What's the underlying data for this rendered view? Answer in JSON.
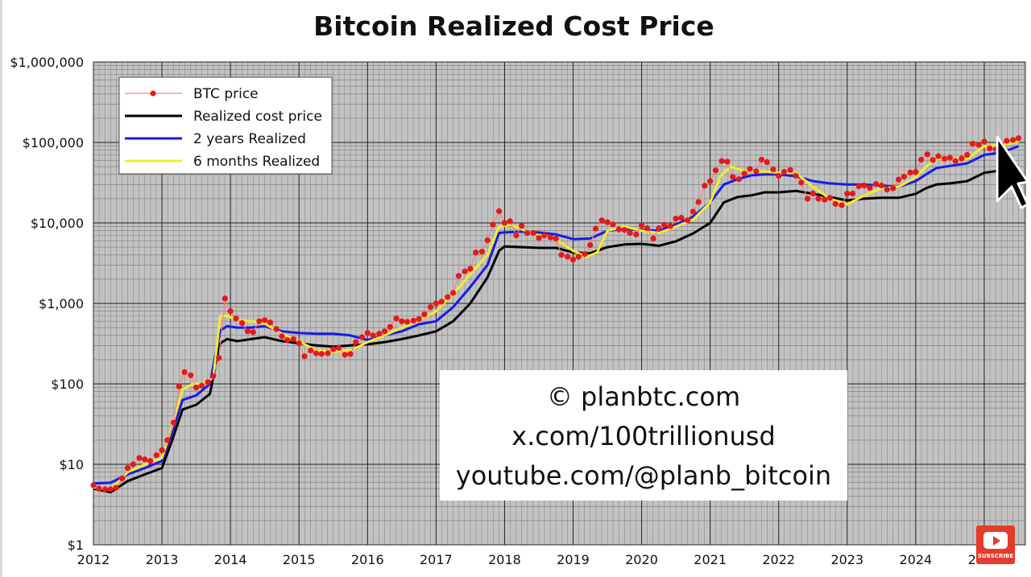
{
  "chart_data": {
    "type": "line",
    "title": "Bitcoin Realized Cost Price",
    "y_scale": "log",
    "ylim": [
      1,
      1000000
    ],
    "xlim": [
      2012.0,
      2025.6
    ],
    "y_ticks": [
      {
        "value": 1000000,
        "label": "$1,000,000"
      },
      {
        "value": 100000,
        "label": "$100,000"
      },
      {
        "value": 10000,
        "label": "$10,000"
      },
      {
        "value": 1000,
        "label": "$1,000"
      },
      {
        "value": 100,
        "label": "$100"
      },
      {
        "value": 10,
        "label": "$10"
      },
      {
        "value": 1,
        "label": "$1"
      }
    ],
    "x_ticks": [
      {
        "value": 2012,
        "label": "2012"
      },
      {
        "value": 2013,
        "label": "2013"
      },
      {
        "value": 2014,
        "label": "2014"
      },
      {
        "value": 2015,
        "label": "2015"
      },
      {
        "value": 2016,
        "label": "2016"
      },
      {
        "value": 2017,
        "label": "2017"
      },
      {
        "value": 2018,
        "label": "2018"
      },
      {
        "value": 2019,
        "label": "2019"
      },
      {
        "value": 2020,
        "label": "2020"
      },
      {
        "value": 2021,
        "label": "2021"
      },
      {
        "value": 2022,
        "label": "2022"
      },
      {
        "value": 2023,
        "label": "2023"
      },
      {
        "value": 2024,
        "label": "2024"
      },
      {
        "value": 2025,
        "label": "2025"
      }
    ],
    "grid": true,
    "legend_position": "top-left",
    "series": [
      {
        "name": "BTC price",
        "color": "#e81818",
        "style": "line+markers",
        "x": [
          2012.0,
          2012.08,
          2012.17,
          2012.25,
          2012.33,
          2012.42,
          2012.5,
          2012.58,
          2012.67,
          2012.75,
          2012.83,
          2012.92,
          2013.0,
          2013.08,
          2013.17,
          2013.25,
          2013.33,
          2013.42,
          2013.5,
          2013.58,
          2013.67,
          2013.75,
          2013.83,
          2013.92,
          2014.0,
          2014.08,
          2014.17,
          2014.25,
          2014.33,
          2014.42,
          2014.5,
          2014.58,
          2014.67,
          2014.75,
          2014.83,
          2014.92,
          2015.0,
          2015.08,
          2015.17,
          2015.25,
          2015.33,
          2015.42,
          2015.5,
          2015.58,
          2015.67,
          2015.75,
          2015.83,
          2015.92,
          2016.0,
          2016.08,
          2016.17,
          2016.25,
          2016.33,
          2016.42,
          2016.5,
          2016.58,
          2016.67,
          2016.75,
          2016.83,
          2016.92,
          2017.0,
          2017.08,
          2017.17,
          2017.25,
          2017.33,
          2017.42,
          2017.5,
          2017.58,
          2017.67,
          2017.75,
          2017.83,
          2017.92,
          2018.0,
          2018.08,
          2018.17,
          2018.25,
          2018.33,
          2018.42,
          2018.5,
          2018.58,
          2018.67,
          2018.75,
          2018.83,
          2018.92,
          2019.0,
          2019.08,
          2019.17,
          2019.25,
          2019.33,
          2019.42,
          2019.5,
          2019.58,
          2019.67,
          2019.75,
          2019.83,
          2019.92,
          2020.0,
          2020.08,
          2020.17,
          2020.25,
          2020.33,
          2020.42,
          2020.5,
          2020.58,
          2020.67,
          2020.75,
          2020.83,
          2020.92,
          2021.0,
          2021.08,
          2021.17,
          2021.25,
          2021.33,
          2021.42,
          2021.5,
          2021.58,
          2021.67,
          2021.75,
          2021.83,
          2021.92,
          2022.0,
          2022.08,
          2022.17,
          2022.25,
          2022.33,
          2022.42,
          2022.5,
          2022.58,
          2022.67,
          2022.75,
          2022.83,
          2022.92,
          2023.0,
          2023.08,
          2023.17,
          2023.25,
          2023.33,
          2023.42,
          2023.5,
          2023.58,
          2023.67,
          2023.75,
          2023.83,
          2023.92,
          2024.0,
          2024.08,
          2024.17,
          2024.25,
          2024.33,
          2024.42,
          2024.5,
          2024.58,
          2024.67,
          2024.75,
          2024.83,
          2024.92,
          2025.0,
          2025.08,
          2025.17,
          2025.25,
          2025.33,
          2025.42,
          2025.5
        ],
        "values": [
          5.5,
          5.0,
          4.9,
          4.9,
          5.1,
          6.7,
          9,
          10,
          12,
          11.5,
          11,
          13,
          15,
          20,
          33,
          93,
          140,
          128,
          90,
          95,
          105,
          125,
          210,
          1150,
          800,
          650,
          570,
          450,
          440,
          600,
          620,
          580,
          480,
          390,
          350,
          360,
          320,
          220,
          260,
          240,
          236,
          240,
          270,
          280,
          230,
          235,
          330,
          380,
          430,
          400,
          420,
          450,
          510,
          650,
          600,
          590,
          610,
          640,
          730,
          900,
          1000,
          1050,
          1200,
          1350,
          2200,
          2500,
          2700,
          4300,
          4400,
          6100,
          9500,
          14000,
          10000,
          10500,
          7000,
          9200,
          7500,
          7500,
          6500,
          7000,
          6600,
          6400,
          4000,
          3800,
          3500,
          3800,
          4100,
          5300,
          8500,
          10800,
          10200,
          9600,
          8300,
          8200,
          7500,
          7200,
          9300,
          8600,
          6400,
          8600,
          9450,
          9130,
          11300,
          11600,
          10800,
          13800,
          18200,
          29000,
          33000,
          45000,
          58800,
          57800,
          37300,
          35000,
          41000,
          47000,
          43800,
          61300,
          57000,
          46200,
          38500,
          43200,
          45500,
          38600,
          31800,
          20000,
          23300,
          20000,
          19400,
          20500,
          17200,
          16600,
          23100,
          23100,
          28500,
          29200,
          27200,
          30500,
          29200,
          26000,
          27000,
          34600,
          37700,
          42300,
          43000,
          61200,
          71300,
          60600,
          67500,
          62700,
          64600,
          58900,
          63300,
          70200,
          96400,
          93400,
          102400,
          84300,
          82500,
          94200,
          104600,
          107100,
          113000
        ]
      },
      {
        "name": "Realized cost price",
        "color": "#000000",
        "style": "line",
        "x": [
          2012.0,
          2012.25,
          2012.5,
          2012.75,
          2013.0,
          2013.15,
          2013.3,
          2013.5,
          2013.7,
          2013.85,
          2013.95,
          2014.1,
          2014.3,
          2014.5,
          2014.75,
          2015.0,
          2015.25,
          2015.5,
          2015.75,
          2016.0,
          2016.25,
          2016.5,
          2016.75,
          2017.0,
          2017.25,
          2017.5,
          2017.75,
          2017.92,
          2018.0,
          2018.25,
          2018.5,
          2018.75,
          2019.0,
          2019.25,
          2019.5,
          2019.75,
          2020.0,
          2020.25,
          2020.5,
          2020.75,
          2021.0,
          2021.2,
          2021.4,
          2021.6,
          2021.8,
          2022.0,
          2022.25,
          2022.5,
          2022.75,
          2023.0,
          2023.25,
          2023.5,
          2023.75,
          2024.0,
          2024.15,
          2024.3,
          2024.5,
          2024.75,
          2025.0,
          2025.25,
          2025.5
        ],
        "values": [
          5,
          4.5,
          6.2,
          7.5,
          9,
          20,
          48,
          55,
          75,
          320,
          360,
          340,
          360,
          380,
          340,
          320,
          300,
          290,
          300,
          310,
          330,
          360,
          400,
          450,
          600,
          1000,
          2100,
          4500,
          5100,
          5000,
          4900,
          4900,
          4300,
          4200,
          5000,
          5400,
          5500,
          5200,
          5900,
          7400,
          10000,
          18000,
          21000,
          22000,
          24000,
          24000,
          25000,
          23000,
          21000,
          19000,
          20000,
          20500,
          20500,
          23000,
          27000,
          30000,
          31000,
          33000,
          42000,
          45000,
          51000
        ]
      },
      {
        "name": "2 years Realized",
        "color": "#1a1ae6",
        "style": "line",
        "x": [
          2012.0,
          2012.25,
          2012.5,
          2012.75,
          2013.0,
          2013.15,
          2013.3,
          2013.5,
          2013.7,
          2013.85,
          2013.95,
          2014.1,
          2014.3,
          2014.5,
          2014.75,
          2015.0,
          2015.25,
          2015.5,
          2015.75,
          2016.0,
          2016.25,
          2016.5,
          2016.75,
          2017.0,
          2017.25,
          2017.5,
          2017.75,
          2017.92,
          2018.0,
          2018.25,
          2018.5,
          2018.75,
          2019.0,
          2019.25,
          2019.5,
          2019.75,
          2020.0,
          2020.25,
          2020.5,
          2020.75,
          2021.0,
          2021.2,
          2021.4,
          2021.6,
          2021.8,
          2022.0,
          2022.25,
          2022.5,
          2022.75,
          2023.0,
          2023.25,
          2023.5,
          2023.75,
          2024.0,
          2024.15,
          2024.3,
          2024.5,
          2024.75,
          2025.0,
          2025.25,
          2025.5
        ],
        "values": [
          5.8,
          5.9,
          7.5,
          9,
          11,
          25,
          63,
          72,
          100,
          460,
          520,
          500,
          500,
          520,
          450,
          430,
          420,
          420,
          400,
          350,
          400,
          450,
          550,
          600,
          900,
          1600,
          3000,
          7500,
          7600,
          7800,
          7600,
          7200,
          6300,
          6400,
          8000,
          8400,
          8200,
          8000,
          9500,
          12000,
          18000,
          30000,
          35000,
          39000,
          40000,
          40000,
          38000,
          33000,
          31000,
          30000,
          30000,
          29000,
          28000,
          33000,
          40000,
          48000,
          51000,
          55000,
          70000,
          75000,
          90000
        ]
      },
      {
        "name": "6 months Realized",
        "color": "#f5ec2a",
        "style": "line",
        "x": [
          2012.0,
          2012.25,
          2012.5,
          2012.75,
          2013.0,
          2013.15,
          2013.3,
          2013.45,
          2013.6,
          2013.75,
          2013.85,
          2013.95,
          2014.1,
          2014.3,
          2014.5,
          2014.75,
          2015.0,
          2015.25,
          2015.5,
          2015.75,
          2016.0,
          2016.25,
          2016.5,
          2016.75,
          2017.0,
          2017.25,
          2017.5,
          2017.75,
          2017.92,
          2018.1,
          2018.3,
          2018.5,
          2018.75,
          2019.0,
          2019.2,
          2019.35,
          2019.5,
          2019.75,
          2020.0,
          2020.25,
          2020.5,
          2020.75,
          2021.0,
          2021.15,
          2021.3,
          2021.5,
          2021.75,
          2022.0,
          2022.25,
          2022.5,
          2022.75,
          2023.0,
          2023.25,
          2023.5,
          2023.75,
          2024.0,
          2024.15,
          2024.3,
          2024.5,
          2024.75,
          2025.0,
          2025.25,
          2025.5
        ],
        "values": [
          5.2,
          4.8,
          8,
          10,
          12,
          30,
          85,
          100,
          100,
          120,
          700,
          700,
          620,
          600,
          560,
          420,
          340,
          260,
          250,
          260,
          330,
          400,
          500,
          620,
          800,
          1300,
          2300,
          4000,
          9000,
          9500,
          8000,
          7000,
          6300,
          4500,
          3800,
          4300,
          8000,
          9000,
          8000,
          7500,
          9000,
          11000,
          18000,
          38000,
          50000,
          44000,
          44000,
          42000,
          42000,
          28000,
          20000,
          17000,
          22000,
          27000,
          28000,
          37000,
          50000,
          62000,
          63000,
          62000,
          90000,
          92000,
          103000
        ]
      }
    ],
    "annotations": [
      "© planbtc.com",
      "x.com/100trillionusd",
      "youtube.com/@planb_bitcoin"
    ]
  },
  "overlay": {
    "subscribe_label": "SUBSCRIBE",
    "icons": [
      "youtube-play-icon",
      "mouse-cursor-icon"
    ]
  }
}
